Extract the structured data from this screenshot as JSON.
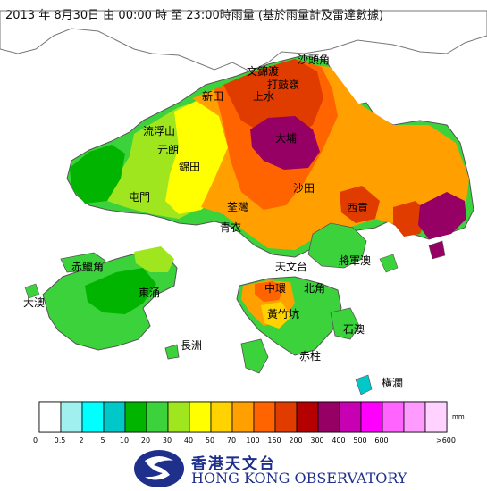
{
  "header": {
    "title": "2013 年  8月30日 由 00:00 時 至 23:00時雨量 (基於雨量計及雷達數據)"
  },
  "legend": {
    "unit": "mm",
    "colors": [
      "#ffffff",
      "#a0f0f0",
      "#00ffff",
      "#00c8c8",
      "#00b400",
      "#3cd23c",
      "#a0e61e",
      "#ffff00",
      "#ffd200",
      "#ffa000",
      "#ff6400",
      "#e03c00",
      "#b40000",
      "#960064",
      "#c800b4",
      "#ff00ff",
      "#ff64ff",
      "#ff9bff",
      "#ffd2ff"
    ],
    "ticks": [
      "0",
      "0.5",
      "2",
      "5",
      "10",
      "20",
      "30",
      "40",
      "50",
      "70",
      "100",
      "150",
      "200",
      "300",
      "400",
      "500",
      "600",
      ">600"
    ]
  },
  "places": [
    {
      "id": "sha-tau-kok",
      "label": "沙頭角"
    },
    {
      "id": "man-kam-to",
      "label": "文錦渡"
    },
    {
      "id": "ta-kwu-ling",
      "label": "打鼓嶺"
    },
    {
      "id": "san-tin",
      "label": "新田"
    },
    {
      "id": "sheung-shui",
      "label": "上水"
    },
    {
      "id": "lau-fau-shan",
      "label": "流浮山"
    },
    {
      "id": "yuen-long",
      "label": "元朗"
    },
    {
      "id": "kam-tin",
      "label": "錦田"
    },
    {
      "id": "tai-po",
      "label": "大埔"
    },
    {
      "id": "tuen-mun",
      "label": "屯門"
    },
    {
      "id": "sha-tin",
      "label": "沙田"
    },
    {
      "id": "sai-kung",
      "label": "西貢"
    },
    {
      "id": "tsuen-wan",
      "label": "荃灣"
    },
    {
      "id": "tsing-yi",
      "label": "青衣"
    },
    {
      "id": "chek-lap-kok",
      "label": "赤鱲角"
    },
    {
      "id": "tai-o",
      "label": "大澳"
    },
    {
      "id": "tung-chung",
      "label": "東涌"
    },
    {
      "id": "cheung-chau",
      "label": "長洲"
    },
    {
      "id": "tsim-sha-tsui",
      "label": "天文台"
    },
    {
      "id": "tseung-kwan-o",
      "label": "將軍澳"
    },
    {
      "id": "central",
      "label": "中環"
    },
    {
      "id": "north-point",
      "label": "北角"
    },
    {
      "id": "wong-chuk-hang",
      "label": "黃竹坑"
    },
    {
      "id": "stanley",
      "label": "赤柱"
    },
    {
      "id": "shek-o",
      "label": "石澳"
    },
    {
      "id": "waglan",
      "label": "橫瀾"
    }
  ],
  "logo": {
    "chinese": "香港天文台",
    "english": "HONG KONG OBSERVATORY"
  }
}
